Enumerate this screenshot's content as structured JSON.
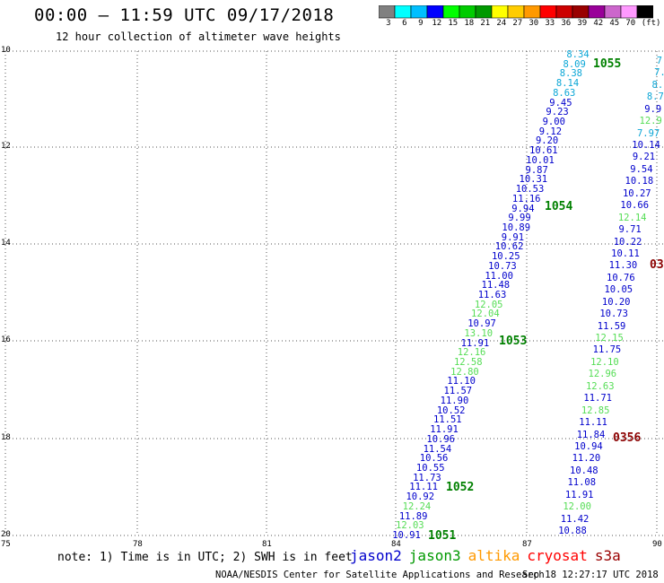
{
  "header": {
    "title": "00:00 – 11:59 UTC 09/17/2018",
    "subtitle": "12 hour collection of altimeter wave heights"
  },
  "colorbar": {
    "colors": [
      "#808080",
      "#00ffff",
      "#00bfff",
      "#0000ff",
      "#00ff00",
      "#00cc00",
      "#009900",
      "#ffff00",
      "#ffcc00",
      "#ff9900",
      "#ff0000",
      "#cc0000",
      "#990000",
      "#990099",
      "#cc66cc",
      "#ff99ff",
      "#000000"
    ],
    "labels": [
      "3",
      "6",
      "9",
      "12",
      "15",
      "18",
      "21",
      "24",
      "27",
      "30",
      "33",
      "36",
      "39",
      "42",
      "45",
      "70",
      "(ft)"
    ]
  },
  "axes": {
    "y_labels": [
      "10",
      "12",
      "14",
      "16",
      "18",
      "20"
    ],
    "x_labels": [
      "75",
      "78",
      "81",
      "84",
      "87",
      "90"
    ]
  },
  "passes": [
    {
      "label": "1055",
      "color": "#008000"
    },
    {
      "label": "1054",
      "color": "#008000"
    },
    {
      "label": "1053",
      "color": "#008000"
    },
    {
      "label": "1052",
      "color": "#008000"
    },
    {
      "label": "1051",
      "color": "#008000"
    },
    {
      "label": "0356",
      "color": "#8b0000"
    },
    {
      "label": "03",
      "color": "#8b0000"
    }
  ],
  "tracks": {
    "left": [
      "8.34",
      "8.09",
      "8.38",
      "8.14",
      "8.63",
      "9.45",
      "9.23",
      "9.00",
      "9.12",
      "9.20",
      "10.61",
      "10.01",
      "9.87",
      "10.31",
      "10.53",
      "11.16",
      "9.94",
      "9.99",
      "10.89",
      "9.91",
      "10.62",
      "10.25",
      "10.73",
      "11.00",
      "11.48",
      "11.63",
      "12.05",
      "12.04",
      "10.97",
      "13.10",
      "11.91",
      "12.16",
      "12.58",
      "12.80",
      "11.10",
      "11.57",
      "11.90",
      "10.52",
      "11.51",
      "11.91",
      "10.96",
      "11.54",
      "10.56",
      "10.55",
      "11.73",
      "11.11",
      "10.92",
      "12.24",
      "11.89",
      "12.03",
      "10.91"
    ],
    "right": [
      "7.",
      "7.",
      "8.",
      "8.7",
      "9.9",
      "12.9",
      "7.97",
      "10.14",
      "9.21",
      "9.54",
      "10.18",
      "10.27",
      "10.66",
      "12.14",
      "9.71",
      "10.22",
      "10.11",
      "11.30",
      "10.76",
      "10.05",
      "10.20",
      "10.73",
      "11.59",
      "12.15",
      "11.75",
      "12.10",
      "12.96",
      "12.63",
      "11.71",
      "12.85",
      "11.11",
      "11.84",
      "10.94",
      "11.20",
      "10.48",
      "11.08",
      "11.91",
      "12.00",
      "11.42",
      "10.88"
    ]
  },
  "footer": {
    "note": "note: 1) Time is in UTC; 2) SWH is in feet",
    "satellites": [
      {
        "name": "jason2",
        "color": "#0000cc"
      },
      {
        "name": "jason3",
        "color": "#009900"
      },
      {
        "name": "altika",
        "color": "#ff9900"
      },
      {
        "name": "cryosat",
        "color": "#ff0000"
      },
      {
        "name": "s3a",
        "color": "#990000"
      }
    ],
    "credit": "NOAA/NESDIS Center for Satellite Applications and Research",
    "timestamp": "Sep 18 12:27:17 UTC 2018"
  }
}
